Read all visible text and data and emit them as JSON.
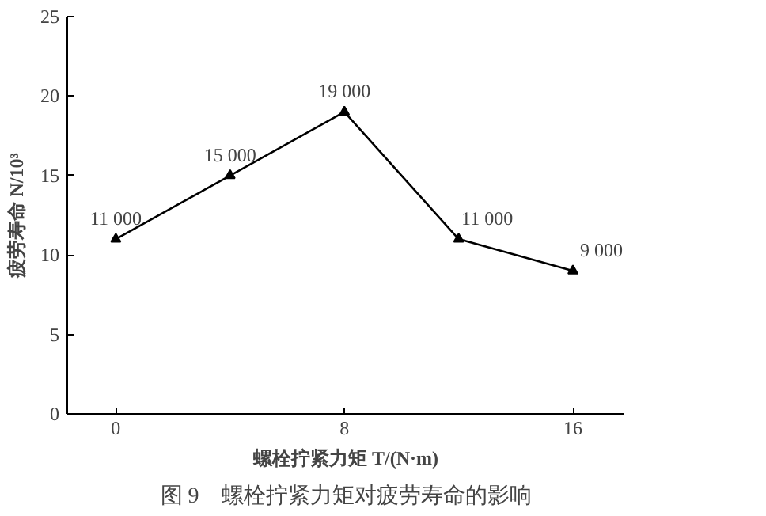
{
  "chart_data": {
    "type": "line",
    "title": "图 9　螺栓拧紧力矩对疲劳寿命的影响",
    "xlabel": "螺栓拧紧力矩 T/(N·m)",
    "ylabel": "疲劳寿命 N/10³",
    "x": [
      0,
      4,
      8,
      12,
      16
    ],
    "series": [
      {
        "color": "#000000",
        "values": [
          11,
          15,
          19,
          11,
          9
        ]
      }
    ],
    "annotations": [
      {
        "text": "11 000",
        "x": 0,
        "y": 11
      },
      {
        "text": "15 000",
        "x": 4,
        "y": 15
      },
      {
        "text": "19 000",
        "x": 8,
        "y": 19
      },
      {
        "text": "11 000",
        "x": 12,
        "y": 11
      },
      {
        "text": "9 000",
        "x": 16,
        "y": 9
      }
    ],
    "xlim": [
      -1.7,
      17.8
    ],
    "ylim": [
      0,
      25
    ],
    "xticks": [
      0,
      8,
      16
    ],
    "yticks": [
      0,
      5,
      10,
      15,
      20,
      25
    ],
    "grid": false,
    "marker": "triangle",
    "line_style": "solid"
  }
}
